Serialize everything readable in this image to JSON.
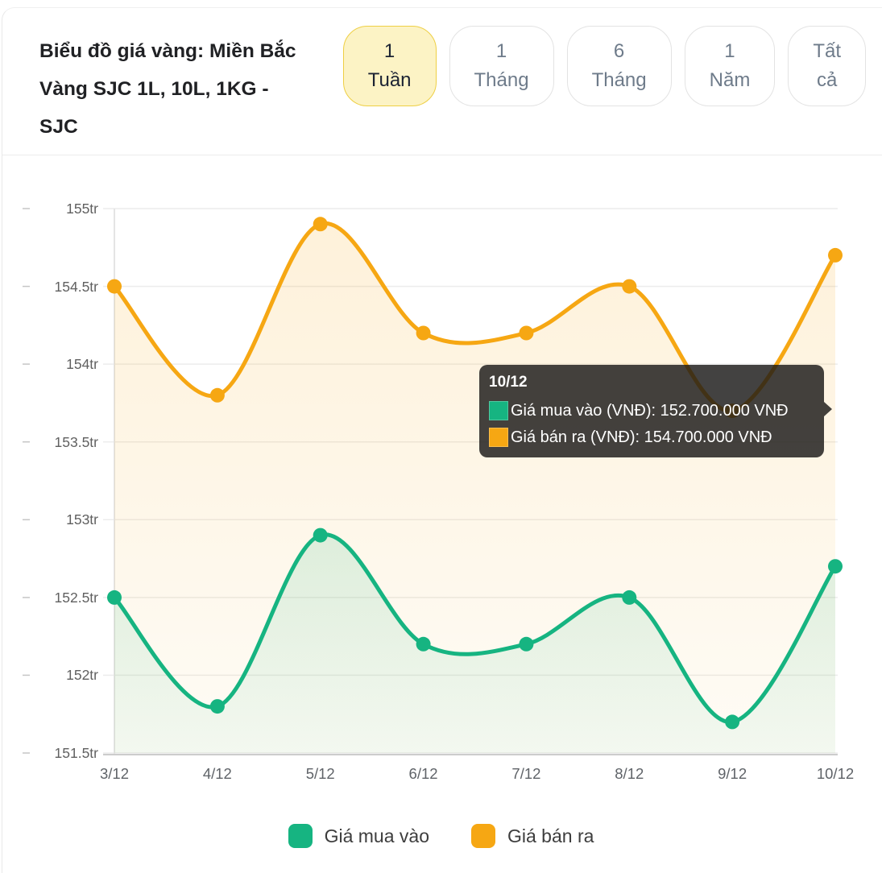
{
  "header": {
    "title": "Biểu đồ giá vàng: Miền Bắc Vàng SJC 1L, 10L, 1KG - SJC",
    "ranges": [
      {
        "label": "1\nTuần",
        "active": true
      },
      {
        "label": "1\nTháng",
        "active": false
      },
      {
        "label": "6\nTháng",
        "active": false
      },
      {
        "label": "1\nNăm",
        "active": false
      },
      {
        "label": "Tất\ncả",
        "active": false
      }
    ]
  },
  "chart_data": {
    "type": "line",
    "categories": [
      "3/12",
      "4/12",
      "5/12",
      "6/12",
      "7/12",
      "8/12",
      "9/12",
      "10/12"
    ],
    "series": [
      {
        "name": "Giá mua vào",
        "color": "#16b481",
        "values": [
          152.5,
          151.8,
          152.9,
          152.2,
          152.2,
          152.5,
          151.7,
          152.7
        ]
      },
      {
        "name": "Giá bán ra",
        "color": "#f6a713",
        "values": [
          154.5,
          153.8,
          154.9,
          154.2,
          154.2,
          154.5,
          153.7,
          154.7
        ]
      }
    ],
    "unit": "tr",
    "ylim": [
      151.5,
      155
    ],
    "y_ticks": [
      {
        "label": "155tr",
        "value": 155
      },
      {
        "label": "154.5tr",
        "value": 154.5
      },
      {
        "label": "154tr",
        "value": 154
      },
      {
        "label": "153.5tr",
        "value": 153.5
      },
      {
        "label": "153tr",
        "value": 153
      },
      {
        "label": "152.5tr",
        "value": 152.5
      },
      {
        "label": "152tr",
        "value": 152
      },
      {
        "label": "151.5tr",
        "value": 151.5
      }
    ],
    "grid": true,
    "legend_position": "bottom",
    "title": "Biểu đồ giá vàng: Miền Bắc Vàng SJC 1L, 10L, 1KG - SJC",
    "xlabel": "",
    "ylabel": ""
  },
  "tooltip": {
    "title": "10/12",
    "rows": [
      {
        "text": "Giá mua vào (VNĐ): 152.700.000 VNĐ",
        "color": "#16b481"
      },
      {
        "text": "Giá bán ra (VNĐ): 154.700.000 VNĐ",
        "color": "#f6a713"
      }
    ]
  },
  "legend": {
    "items": [
      {
        "label": "Giá mua vào",
        "color": "#16b481"
      },
      {
        "label": "Giá bán ra",
        "color": "#f6a713"
      }
    ]
  },
  "colors": {
    "accent_active_bg": "#fcf3c5",
    "accent_active_border": "#eecf44",
    "grid": "#ececec",
    "axis": "#cccccc"
  }
}
